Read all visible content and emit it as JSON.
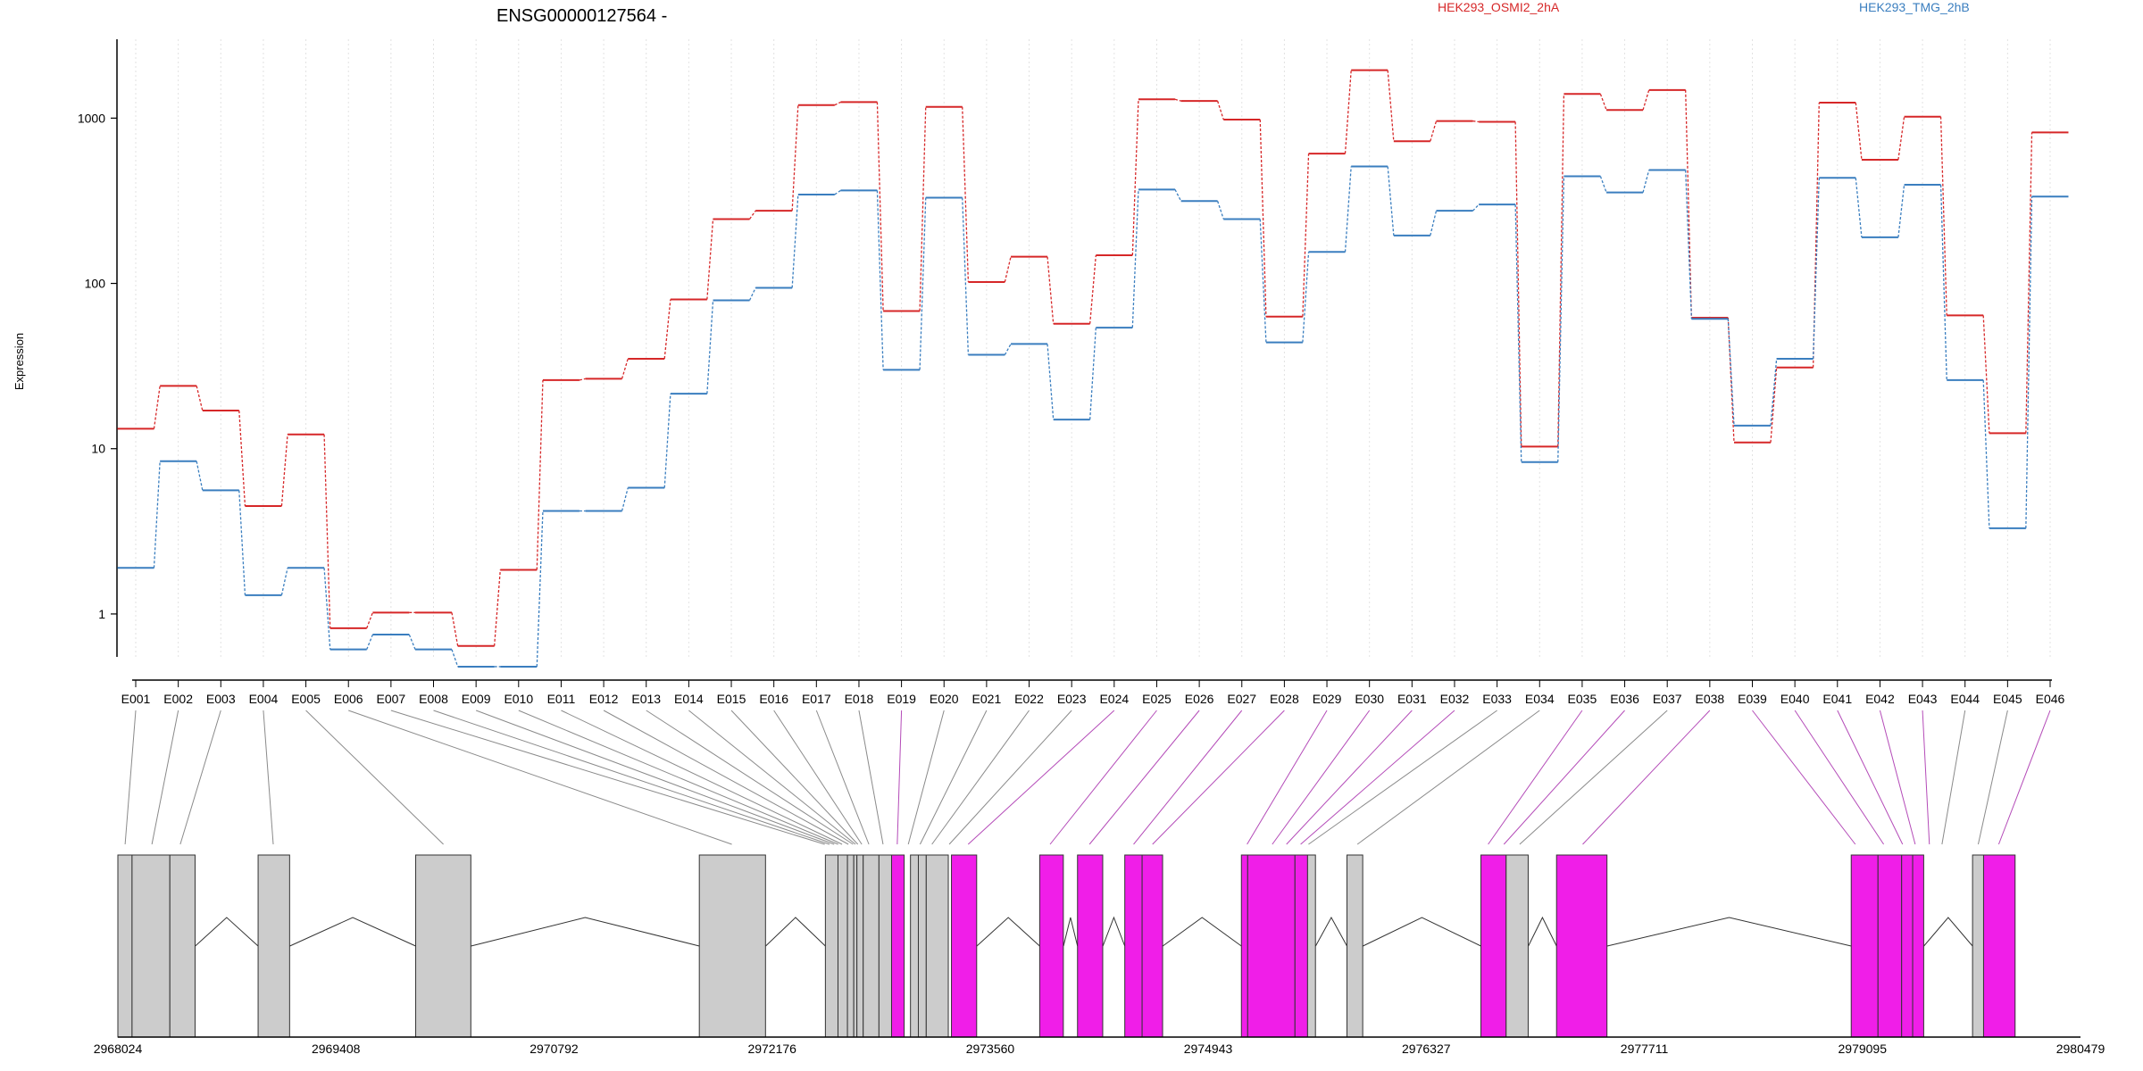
{
  "chart_data": {
    "type": "line",
    "title": "ENSG00000127564 -",
    "ylabel": "Expression",
    "xlabel": "",
    "y_scale": "log",
    "ylim": [
      0.55,
      3000
    ],
    "y_ticks": [
      1,
      10,
      100,
      1000
    ],
    "y_tick_labels": [
      "1",
      "10",
      "100",
      "1000"
    ],
    "grid": "vertical-dotted",
    "legend_placement": "top-right",
    "categories": [
      "E001",
      "E002",
      "E003",
      "E004",
      "E005",
      "E006",
      "E007",
      "E008",
      "E009",
      "E010",
      "E011",
      "E012",
      "E013",
      "E014",
      "E015",
      "E016",
      "E017",
      "E018",
      "E019",
      "E020",
      "E021",
      "E022",
      "E023",
      "E024",
      "E025",
      "E026",
      "E027",
      "E028",
      "E029",
      "E030",
      "E031",
      "E032",
      "E033",
      "E034",
      "E035",
      "E036",
      "E037",
      "E038",
      "E039",
      "E040",
      "E041",
      "E042",
      "E043",
      "E044",
      "E045",
      "E046"
    ],
    "series": [
      {
        "name": "HEK293_OSMI2_2hA",
        "color": "#d62728",
        "values": [
          13.2,
          24,
          17,
          4.5,
          12.2,
          0.82,
          1.02,
          1.02,
          0.64,
          1.85,
          26,
          26.5,
          35,
          80,
          245,
          275,
          1200,
          1250,
          68,
          1170,
          102,
          145,
          57,
          148,
          1300,
          1270,
          980,
          63,
          610,
          1950,
          725,
          960,
          950,
          10.3,
          1400,
          1120,
          1480,
          62,
          10.9,
          31,
          1240,
          560,
          1020,
          64,
          12.4,
          820
        ]
      },
      {
        "name": "HEK293_TMG_2hB",
        "color": "#3a7ebf",
        "values": [
          1.9,
          8.4,
          5.6,
          1.3,
          1.9,
          0.61,
          0.75,
          0.61,
          0.48,
          0.48,
          4.2,
          4.2,
          5.8,
          21.5,
          79,
          94,
          345,
          365,
          30,
          330,
          37,
          43,
          15,
          54,
          370,
          315,
          245,
          44,
          155,
          510,
          195,
          275,
          300,
          8.3,
          445,
          355,
          485,
          61,
          13.8,
          35,
          435,
          190,
          395,
          26,
          3.3,
          335
        ]
      }
    ],
    "gene_model": {
      "genomic_range": [
        2968024,
        2980479
      ],
      "axis_tick_labels": [
        "2968024",
        "2969408",
        "2970792",
        "2972176",
        "2973560",
        "2974943",
        "2976327",
        "2977711",
        "2979095",
        "2980479"
      ],
      "exon_status": [
        "gray",
        "gray",
        "gray",
        "gray",
        "gray",
        "gray",
        "gray",
        "gray",
        "gray",
        "gray",
        "gray",
        "gray",
        "gray",
        "gray",
        "gray",
        "gray",
        "gray",
        "gray",
        "magenta",
        "gray",
        "gray",
        "gray",
        "gray",
        "magenta",
        "magenta",
        "magenta",
        "magenta",
        "magenta",
        "magenta",
        "magenta",
        "magenta",
        "magenta",
        "gray",
        "gray",
        "magenta",
        "magenta",
        "gray",
        "magenta",
        "magenta",
        "magenta",
        "magenta",
        "magenta",
        "magenta",
        "gray",
        "gray",
        "magenta"
      ],
      "exons_gdu": [
        [
          2968024,
          2968114
        ],
        [
          2968114,
          2968354
        ],
        [
          2968354,
          2968514
        ],
        [
          2968914,
          2969114
        ],
        [
          2969914,
          2970264
        ],
        [
          2971714,
          2972134
        ],
        [
          2972514,
          2972594
        ],
        [
          2972594,
          2972654
        ],
        [
          2972654,
          2972694
        ],
        [
          2972694,
          2972714
        ],
        [
          2972714,
          2972754
        ],
        [
          2972754,
          2972854
        ],
        [
          2972854,
          2972934
        ],
        [
          2972934,
          2973014
        ],
        [
          2973054,
          2973104
        ],
        [
          2973104,
          2973154
        ],
        [
          2973154,
          2973294
        ],
        [
          2973314,
          2973474
        ],
        [
          2973874,
          2974024
        ],
        [
          2974114,
          2974274
        ],
        [
          2974414,
          2974524
        ],
        [
          2974524,
          2974654
        ],
        [
          2975154,
          2975194
        ],
        [
          2975194,
          2975494
        ],
        [
          2975494,
          2975574
        ],
        [
          2975574,
          2975624
        ],
        [
          2975824,
          2975924
        ],
        [
          2976674,
          2976834
        ],
        [
          2976834,
          2976974
        ],
        [
          2977154,
          2977474
        ],
        [
          2979024,
          2979194
        ],
        [
          2979194,
          2979344
        ],
        [
          2979344,
          2979414
        ],
        [
          2979414,
          2979484
        ],
        [
          2979794,
          2979864
        ],
        [
          2979864,
          2980064
        ]
      ],
      "connectors": [
        [
          2968515,
          2968914
        ],
        [
          2969115,
          2969914
        ],
        [
          2970265,
          2971714
        ],
        [
          2972135,
          2972514
        ],
        [
          2973475,
          2973874
        ],
        [
          2974025,
          2974114
        ],
        [
          2974275,
          2974414
        ],
        [
          2974655,
          2975154
        ],
        [
          2975625,
          2975824
        ],
        [
          2975925,
          2976674
        ],
        [
          2976975,
          2977154
        ],
        [
          2977475,
          2979024
        ],
        [
          2979485,
          2979794
        ]
      ],
      "exon_to_region": [
        2968070,
        2968240,
        2968420,
        2969010,
        2970090,
        2971920,
        2972510,
        2972540,
        2972570,
        2972595,
        2972620,
        2972660,
        2972690,
        2972705,
        2972720,
        2972745,
        2972790,
        2972880,
        2972970,
        2973040,
        2973115,
        2973190,
        2973300,
        2973420,
        2973940,
        2974190,
        2974470,
        2974590,
        2975190,
        2975350,
        2975440,
        2975530,
        2975580,
        2975890,
        2976720,
        2976820,
        2976920,
        2977320,
        2979050,
        2979230,
        2979350,
        2979430,
        2979520,
        2979600,
        2979830,
        2979960
      ]
    }
  }
}
